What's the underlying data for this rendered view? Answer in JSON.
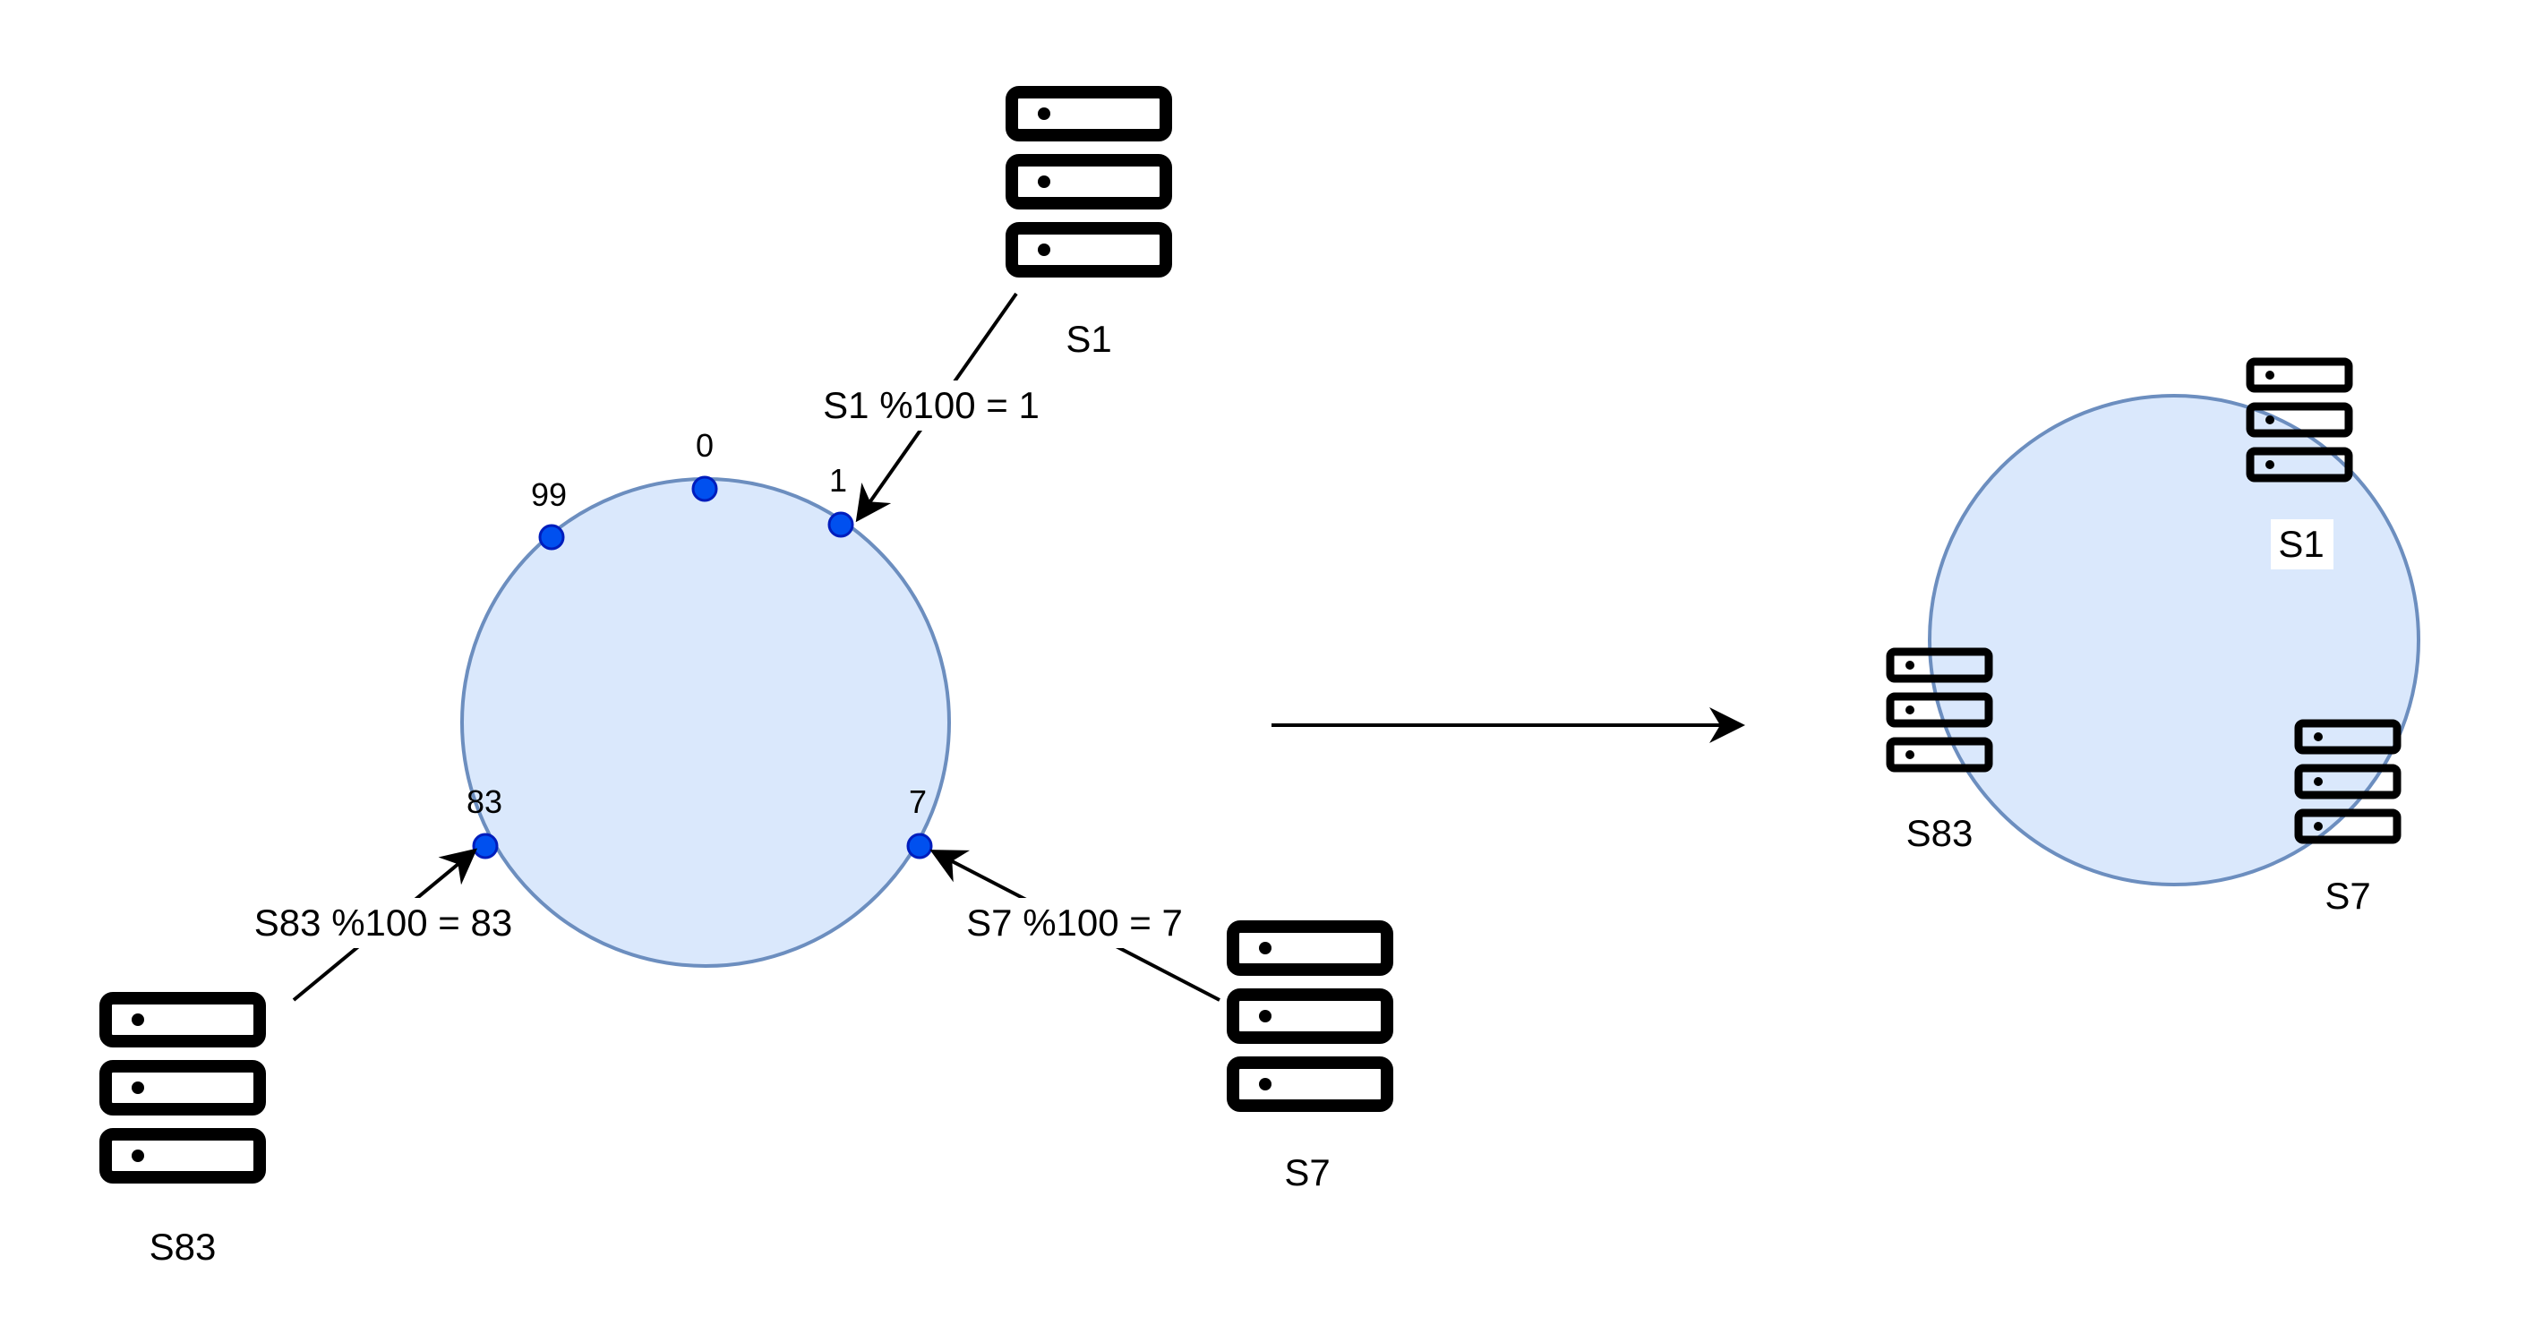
{
  "ring_positions": [
    {
      "label": "0"
    },
    {
      "label": "1"
    },
    {
      "label": "99"
    },
    {
      "label": "83"
    },
    {
      "label": "7"
    }
  ],
  "servers": [
    {
      "name": "S1",
      "formula": "S1 %100 = 1"
    },
    {
      "name": "S83",
      "formula": "S83 %100 = 83"
    },
    {
      "name": "S7",
      "formula": "S7 %100 = 7"
    }
  ],
  "result_servers": [
    {
      "name": "S1"
    },
    {
      "name": "S83"
    },
    {
      "name": "S7"
    }
  ],
  "colors": {
    "ring_fill": "#dae8fc",
    "ring_stroke": "#6c8ebf",
    "node_fill": "#0050ef",
    "node_stroke": "#001dbc",
    "ink": "#000000"
  }
}
